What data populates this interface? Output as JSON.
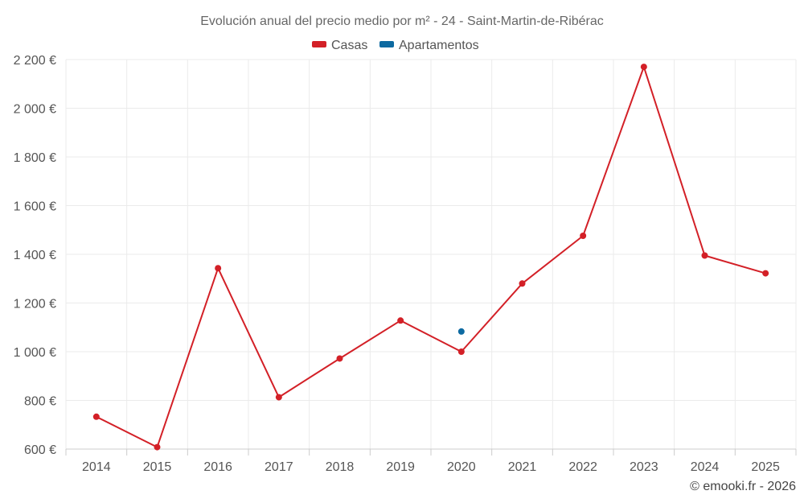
{
  "chart_data": {
    "type": "line",
    "title": "Evolución anual del precio medio por m² - 24 - Saint-Martin-de-Ribérac",
    "categories": [
      "2014",
      "2015",
      "2016",
      "2017",
      "2018",
      "2019",
      "2020",
      "2021",
      "2022",
      "2023",
      "2024",
      "2025"
    ],
    "series": [
      {
        "name": "Casas",
        "color": "#d32027",
        "values": [
          733,
          608,
          1343,
          813,
          972,
          1128,
          1000,
          1280,
          1476,
          2170,
          1395,
          1322
        ]
      },
      {
        "name": "Apartamentos",
        "color": "#0d6aa1",
        "values": [
          null,
          null,
          null,
          null,
          null,
          null,
          1083,
          null,
          null,
          null,
          null,
          null
        ]
      }
    ],
    "yaxis": {
      "ticks": [
        600,
        800,
        1000,
        1200,
        1400,
        1600,
        1800,
        2000,
        2200
      ],
      "tick_labels": [
        "600 €",
        "800 €",
        "1 000 €",
        "1 200 €",
        "1 400 €",
        "1 600 €",
        "1 800 €",
        "2 000 €",
        "2 200 €"
      ]
    },
    "ylim": [
      600,
      2200
    ],
    "grid": true,
    "legend": "top-center",
    "credit": "© emooki.fr - 2026"
  }
}
